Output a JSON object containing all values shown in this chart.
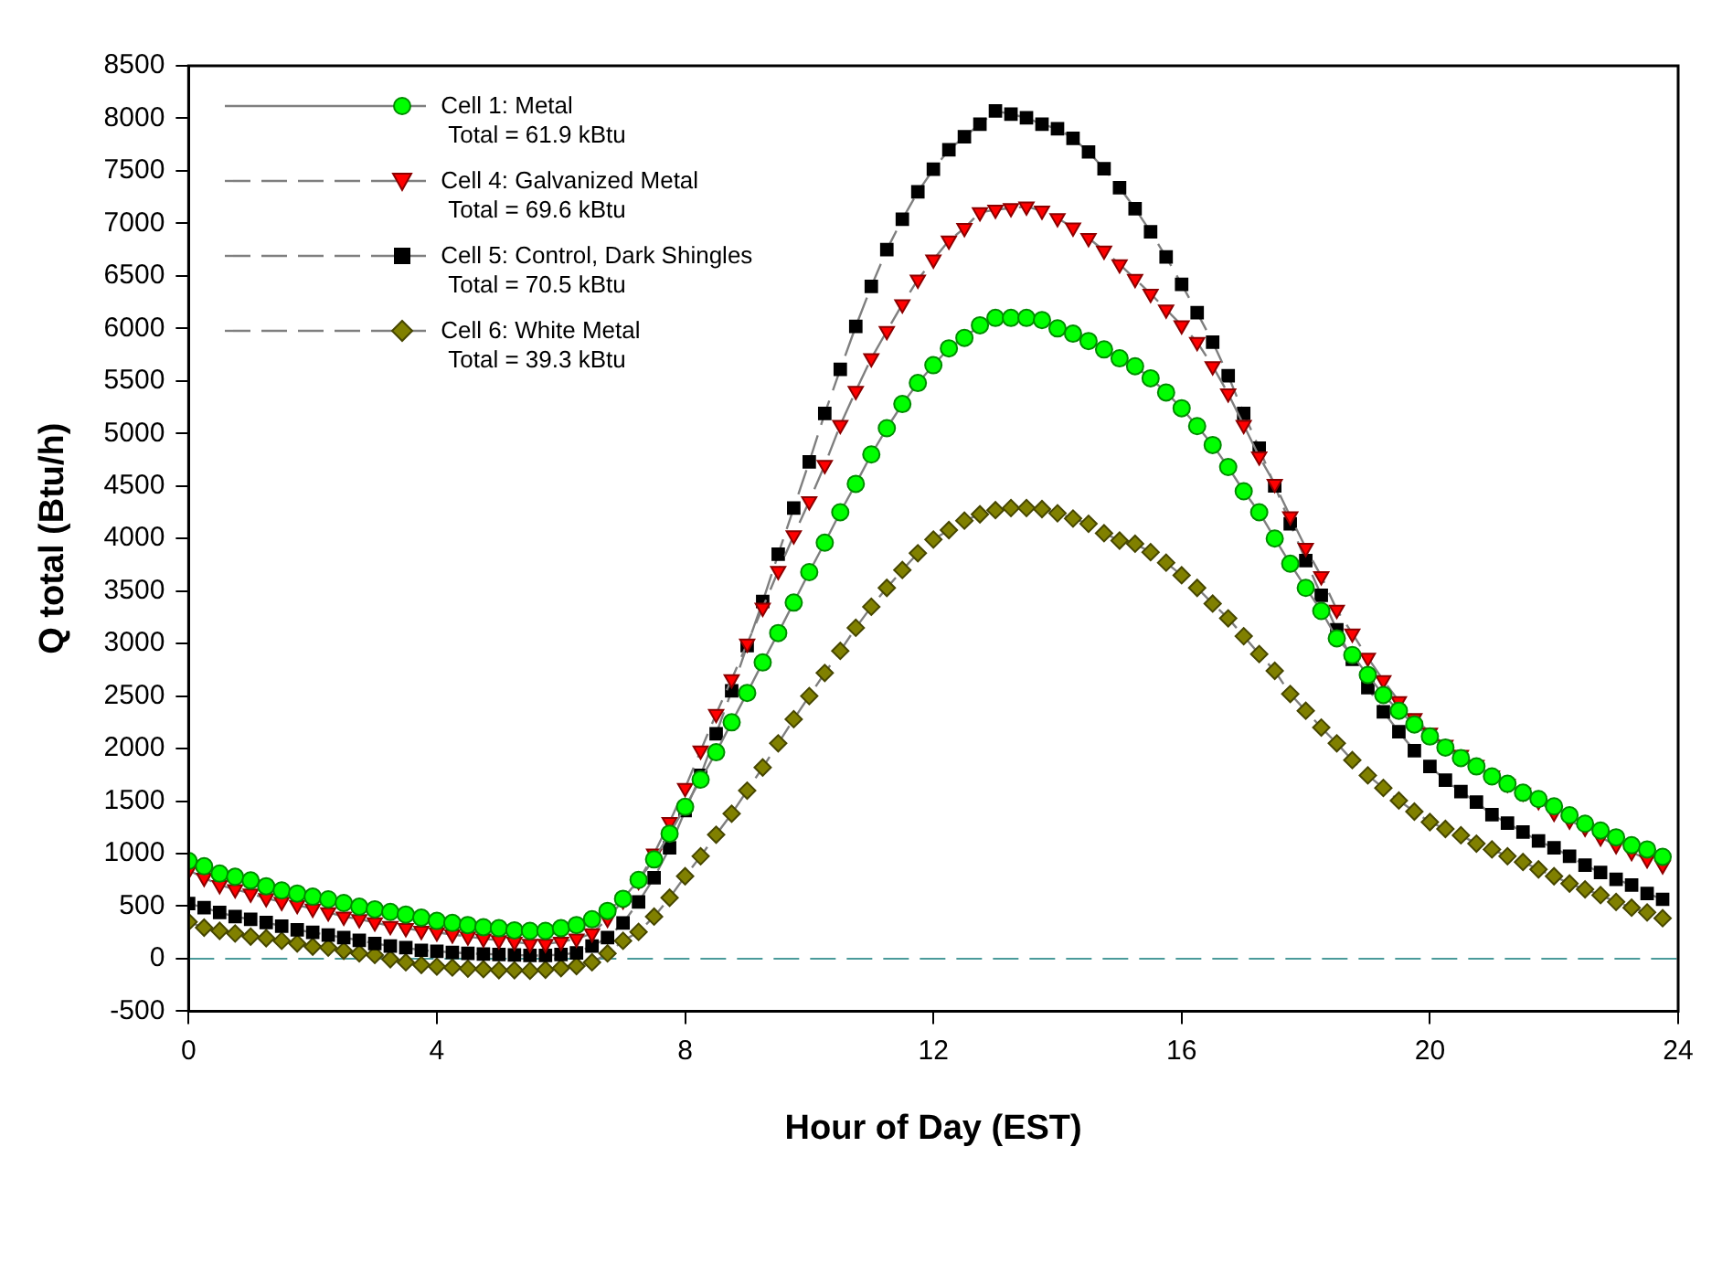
{
  "chart_data": {
    "type": "line",
    "xlabel": "Hour of Day (EST)",
    "ylabel": "Q total (Btu/h)",
    "x": [
      0,
      0.25,
      0.5,
      0.75,
      1,
      1.25,
      1.5,
      1.75,
      2,
      2.25,
      2.5,
      2.75,
      3,
      3.25,
      3.5,
      3.75,
      4,
      4.25,
      4.5,
      4.75,
      5,
      5.25,
      5.5,
      5.75,
      6,
      6.25,
      6.5,
      6.75,
      7,
      7.25,
      7.5,
      7.75,
      8,
      8.25,
      8.5,
      8.75,
      9,
      9.25,
      9.5,
      9.75,
      10,
      10.25,
      10.5,
      10.75,
      11,
      11.25,
      11.5,
      11.75,
      12,
      12.25,
      12.5,
      12.75,
      13,
      13.25,
      13.5,
      13.75,
      14,
      14.25,
      14.5,
      14.75,
      15,
      15.25,
      15.5,
      15.75,
      16,
      16.25,
      16.5,
      16.75,
      17,
      17.25,
      17.5,
      17.75,
      18,
      18.25,
      18.5,
      18.75,
      19,
      19.25,
      19.5,
      19.75,
      20,
      20.25,
      20.5,
      20.75,
      21,
      21.25,
      21.5,
      21.75,
      22,
      22.25,
      22.5,
      22.75,
      23,
      23.25,
      23.5,
      23.75
    ],
    "xlim": [
      0,
      24
    ],
    "xticks": [
      0,
      4,
      8,
      12,
      16,
      20,
      24
    ],
    "ylim": [
      -500,
      8500
    ],
    "yticks": [
      -500,
      0,
      500,
      1000,
      1500,
      2000,
      2500,
      3000,
      3500,
      4000,
      4500,
      5000,
      5500,
      6000,
      6500,
      7000,
      7500,
      8000,
      8500
    ],
    "grid": false,
    "legend": "top left",
    "ref_lines": [
      {
        "axis": "y",
        "value": 0,
        "color": "#4a9a9a",
        "line_style": "dashed"
      }
    ],
    "series": [
      {
        "name": "Cell 1: Metal\nTotal = 61.9 kBtu",
        "color": "#00ff00",
        "marker": "circle",
        "line_style": "solid",
        "values": [
          930,
          880,
          810,
          780,
          745,
          690,
          650,
          620,
          590,
          565,
          530,
          495,
          470,
          445,
          420,
          390,
          360,
          340,
          320,
          300,
          290,
          270,
          265,
          265,
          290,
          320,
          375,
          455,
          570,
          750,
          945,
          1190,
          1445,
          1705,
          1965,
          2250,
          2530,
          2820,
          3100,
          3390,
          3680,
          3960,
          4250,
          4520,
          4800,
          5050,
          5280,
          5480,
          5650,
          5810,
          5910,
          6030,
          6100,
          6100,
          6100,
          6080,
          6000,
          5950,
          5880,
          5800,
          5715,
          5640,
          5525,
          5390,
          5240,
          5070,
          4890,
          4680,
          4450,
          4250,
          4000,
          3760,
          3530,
          3310,
          3050,
          2890,
          2700,
          2510,
          2360,
          2230,
          2115,
          2010,
          1910,
          1830,
          1735,
          1665,
          1580,
          1520,
          1450,
          1365,
          1285,
          1220,
          1155,
          1080,
          1040,
          970
        ]
      },
      {
        "name": "Cell 4: Galvanized Metal\nTotal = 69.6 kBtu",
        "color": "#ff0000",
        "marker": "triangle",
        "line_style": "dashed",
        "values": [
          840,
          770,
          700,
          660,
          620,
          575,
          540,
          510,
          475,
          440,
          400,
          375,
          345,
          310,
          290,
          265,
          250,
          230,
          210,
          190,
          175,
          160,
          140,
          140,
          160,
          190,
          240,
          380,
          555,
          740,
          1000,
          1300,
          1625,
          1980,
          2330,
          2660,
          3000,
          3340,
          3690,
          4030,
          4355,
          4700,
          5080,
          5405,
          5715,
          5975,
          6230,
          6465,
          6655,
          6835,
          6955,
          7105,
          7130,
          7145,
          7160,
          7120,
          7050,
          6960,
          6860,
          6740,
          6610,
          6470,
          6330,
          6180,
          6030,
          5870,
          5640,
          5380,
          5080,
          4780,
          4520,
          4210,
          3910,
          3640,
          3320,
          3095,
          2865,
          2650,
          2450,
          2290,
          2150,
          2035,
          1940,
          1845,
          1745,
          1665,
          1580,
          1500,
          1390,
          1315,
          1245,
          1155,
          1080,
          1015,
          945,
          890
        ]
      },
      {
        "name": "Cell 5: Control, Dark Shingles\nTotal = 70.5 kBtu",
        "color": "#000000",
        "marker": "square",
        "line_style": "dashed",
        "values": [
          525,
          485,
          440,
          400,
          375,
          345,
          310,
          275,
          250,
          225,
          200,
          175,
          145,
          120,
          105,
          80,
          70,
          60,
          50,
          45,
          40,
          35,
          30,
          30,
          40,
          55,
          120,
          200,
          340,
          540,
          770,
          1055,
          1410,
          1745,
          2140,
          2550,
          2980,
          3400,
          3850,
          4290,
          4730,
          5190,
          5610,
          6020,
          6400,
          6750,
          7040,
          7300,
          7515,
          7700,
          7825,
          7945,
          8070,
          8040,
          8005,
          7945,
          7900,
          7810,
          7680,
          7520,
          7340,
          7140,
          6920,
          6680,
          6420,
          6150,
          5870,
          5550,
          5190,
          4860,
          4500,
          4140,
          3790,
          3460,
          3130,
          2850,
          2580,
          2350,
          2160,
          1980,
          1830,
          1700,
          1590,
          1490,
          1370,
          1290,
          1205,
          1120,
          1055,
          975,
          890,
          820,
          755,
          700,
          620,
          565
        ]
      },
      {
        "name": "Cell 6: White Metal\nTotal = 39.3 kBtu",
        "color": "#808000",
        "marker": "diamond",
        "line_style": "dashed",
        "values": [
          350,
          295,
          265,
          240,
          210,
          195,
          170,
          145,
          115,
          105,
          75,
          50,
          35,
          -5,
          -35,
          -60,
          -75,
          -85,
          -95,
          -100,
          -110,
          -110,
          -115,
          -105,
          -90,
          -70,
          -35,
          50,
          170,
          255,
          400,
          580,
          785,
          975,
          1180,
          1380,
          1600,
          1820,
          2050,
          2280,
          2500,
          2720,
          2930,
          3150,
          3350,
          3530,
          3700,
          3860,
          3990,
          4080,
          4170,
          4230,
          4270,
          4290,
          4290,
          4280,
          4240,
          4190,
          4140,
          4050,
          3980,
          3950,
          3870,
          3770,
          3650,
          3530,
          3380,
          3240,
          3070,
          2900,
          2740,
          2520,
          2360,
          2200,
          2050,
          1890,
          1745,
          1625,
          1505,
          1400,
          1300,
          1235,
          1175,
          1095,
          1040,
          975,
          920,
          850,
          785,
          715,
          660,
          605,
          540,
          485,
          440,
          385
        ]
      }
    ]
  }
}
